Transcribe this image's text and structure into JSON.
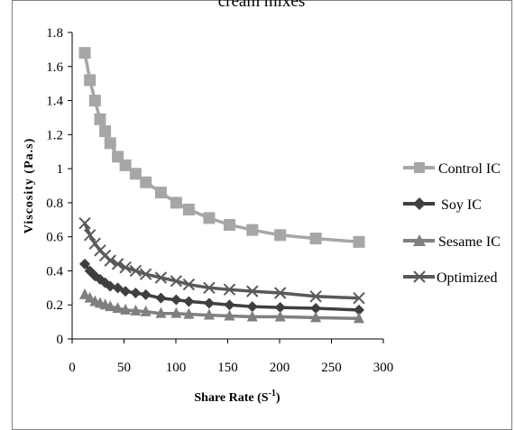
{
  "chart_data": {
    "type": "line",
    "title_visible_fragment": "cream mixes",
    "xlabel": "Share Rate (S",
    "xlabel_superscript": "-1",
    "xlabel_suffix": ")",
    "ylabel": "Viscosity (Pa.s)",
    "xlim": [
      0,
      300
    ],
    "ylim": [
      0,
      1.8
    ],
    "x_ticks": [
      "0",
      "50",
      "100",
      "150",
      "200",
      "250",
      "300"
    ],
    "y_ticks": [
      "0",
      "0.2",
      "0.4",
      "0.6",
      "0.8",
      "1",
      "1.2",
      "1.4",
      "1.6",
      "1.8"
    ],
    "grid": false,
    "legend_position": "right",
    "series": [
      {
        "name": "Control IC",
        "marker": "square",
        "color": "#a6a6a6",
        "x": [
          12.2,
          17.1,
          22.0,
          26.9,
          31.8,
          36.7,
          44.0,
          51.4,
          61.2,
          71.0,
          85.6,
          100.3,
          112.5,
          132.1,
          151.7,
          173.7,
          200.6,
          234.9,
          276.5
        ],
        "y": [
          1.68,
          1.52,
          1.4,
          1.29,
          1.22,
          1.15,
          1.07,
          1.02,
          0.97,
          0.92,
          0.86,
          0.8,
          0.76,
          0.71,
          0.67,
          0.64,
          0.61,
          0.59,
          0.57
        ]
      },
      {
        "name": "Soy IC",
        "marker": "diamond",
        "color": "#3f3f3f",
        "x": [
          12.2,
          17.1,
          22.0,
          26.9,
          31.8,
          36.7,
          44.0,
          51.4,
          61.2,
          71.0,
          85.6,
          100.3,
          112.5,
          132.1,
          151.7,
          173.7,
          200.6,
          234.9,
          276.5
        ],
        "y": [
          0.44,
          0.4,
          0.37,
          0.35,
          0.33,
          0.31,
          0.3,
          0.28,
          0.27,
          0.26,
          0.24,
          0.23,
          0.22,
          0.21,
          0.2,
          0.19,
          0.185,
          0.18,
          0.17
        ]
      },
      {
        "name": "Sesame IC",
        "marker": "triangle",
        "color": "#7f7f7f",
        "x": [
          12.2,
          17.1,
          22.0,
          26.9,
          31.8,
          36.7,
          44.0,
          51.4,
          61.2,
          71.0,
          85.6,
          100.3,
          112.5,
          132.1,
          151.7,
          173.7,
          200.6,
          234.9,
          276.5
        ],
        "y": [
          0.26,
          0.24,
          0.22,
          0.21,
          0.2,
          0.19,
          0.18,
          0.17,
          0.165,
          0.16,
          0.15,
          0.15,
          0.145,
          0.14,
          0.135,
          0.13,
          0.13,
          0.125,
          0.12
        ]
      },
      {
        "name": "Optimized",
        "marker": "x",
        "color": "#595959",
        "x": [
          12.2,
          17.1,
          22.0,
          26.9,
          31.8,
          36.7,
          44.0,
          51.4,
          61.2,
          71.0,
          85.6,
          100.3,
          112.5,
          132.1,
          151.7,
          173.7,
          200.6,
          234.9,
          276.5
        ],
        "y": [
          0.68,
          0.61,
          0.56,
          0.52,
          0.49,
          0.46,
          0.44,
          0.42,
          0.4,
          0.38,
          0.36,
          0.34,
          0.32,
          0.3,
          0.29,
          0.28,
          0.27,
          0.25,
          0.24
        ]
      }
    ]
  }
}
